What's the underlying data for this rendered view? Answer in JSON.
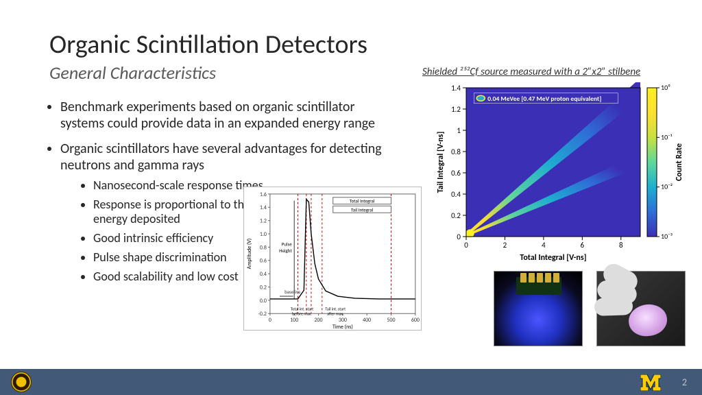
{
  "title": "Organic Scintillation Detectors",
  "subtitle": "General Characteristics",
  "caption_psd": "Shielded ²⁵²Cf source measured with a 2”x2” stilbene",
  "bullets": {
    "main": [
      "Benchmark experiments based on organic scintillator systems could provide data in an expanded energy range",
      "Organic scintillators have several advantages for detecting neutrons and gamma rays"
    ],
    "sub": [
      "Nanosecond-scale response times",
      "Response is proportional to the energy deposited",
      "Good intrinsic efficiency",
      "Pulse shape discrimination",
      "Good scalability and low cost"
    ]
  },
  "pulse_plot": {
    "xlabel": "Time (ns)",
    "ylabel": "Amplitude (V)",
    "xlim": [
      0,
      600
    ],
    "ylim": [
      -0.2,
      1.6
    ],
    "ytick_step": 0.2,
    "xtick_step": 100,
    "labels": {
      "baseline": "baseline",
      "pulse_height": "Pulse\nHeight",
      "total_int": "Total Integral",
      "tail_int": "Tail Integral",
      "start_before": "Total int. start\nbefore max.",
      "start_after": "Tail int. start\nafter max."
    },
    "vlines_x": [
      115,
      150,
      170,
      215,
      500
    ],
    "vline_color": "#cc0000",
    "curve_color": "#000000",
    "curve_points": [
      [
        0,
        0.02
      ],
      [
        60,
        0.02
      ],
      [
        115,
        0.02
      ],
      [
        140,
        0.15
      ],
      [
        150,
        1.52
      ],
      [
        160,
        1.48
      ],
      [
        170,
        1.0
      ],
      [
        185,
        0.55
      ],
      [
        200,
        0.32
      ],
      [
        230,
        0.14
      ],
      [
        280,
        0.06
      ],
      [
        350,
        0.03
      ],
      [
        450,
        0.02
      ],
      [
        600,
        0.02
      ]
    ],
    "background": "#ffffff",
    "grid_color": "#cccccc",
    "label_fontsize": 8,
    "tick_fontsize": 8
  },
  "psd_chart": {
    "type": "scatter-density",
    "xlabel": "Total Integral [V-ns]",
    "ylabel": "Tail Integral [V-ns]",
    "cbar_label": "Count Rate",
    "xlim": [
      0,
      9
    ],
    "ylim": [
      0,
      1.4
    ],
    "xticks": [
      0,
      2,
      4,
      6,
      8
    ],
    "yticks": [
      0,
      0.2,
      0.4,
      0.6,
      0.8,
      1,
      1.2,
      1.4
    ],
    "cbar_ticks": [
      "10⁰",
      "10⁻¹",
      "10⁻²",
      "10⁻³"
    ],
    "legend_text": "0.04 MeVee [0.47 MeV proton equivalent]",
    "background": "#3b2fb5",
    "colormap": [
      "#3b2fb5",
      "#2e6fd8",
      "#1eb0d0",
      "#60d89a",
      "#c8e040",
      "#ffe030",
      "#fff020"
    ],
    "branch_upper": {
      "slope": 0.155,
      "width": 0.06
    },
    "branch_lower": {
      "slope": 0.08,
      "width": 0.04
    },
    "label_fontsize": 12,
    "axis_fontweight": "bold"
  },
  "footer": {
    "page": "2"
  }
}
